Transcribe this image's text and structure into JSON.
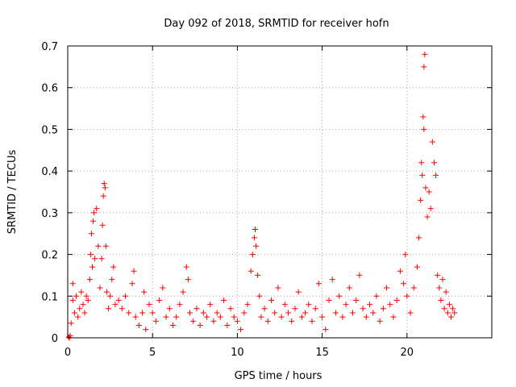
{
  "chart_data": {
    "type": "scatter",
    "title": "Day 092 of 2018, SRMTID for receiver hofn",
    "xlabel": "GPS time / hours",
    "ylabel": "SRMTID / TECUs",
    "xlim": [
      0,
      25
    ],
    "ylim": [
      0,
      0.7
    ],
    "xticks": [
      0,
      5,
      10,
      15,
      20
    ],
    "xtick_labels": [
      "0",
      "5",
      "10",
      "15",
      "20"
    ],
    "yticks": [
      0,
      0.1,
      0.2,
      0.3,
      0.4,
      0.5,
      0.6,
      0.7
    ],
    "ytick_labels": [
      "0",
      "0.1",
      "0.2",
      "0.3",
      "0.4",
      "0.5",
      "0.6",
      "0.7"
    ],
    "grid": true,
    "marker": "+",
    "series": [
      {
        "name": "SRMTID",
        "color": "#ff0000",
        "points": [
          [
            0.05,
            0.002
          ],
          [
            0.1,
            0.0
          ],
          [
            0.15,
            0.005
          ],
          [
            0.2,
            0.035
          ],
          [
            0.3,
            0.13
          ],
          [
            0.3,
            0.09
          ],
          [
            0.4,
            0.06
          ],
          [
            0.5,
            0.1
          ],
          [
            0.6,
            0.05
          ],
          [
            0.7,
            0.07
          ],
          [
            0.8,
            0.11
          ],
          [
            0.9,
            0.08
          ],
          [
            1.0,
            0.06
          ],
          [
            1.1,
            0.1
          ],
          [
            1.2,
            0.09
          ],
          [
            1.3,
            0.14
          ],
          [
            1.35,
            0.2
          ],
          [
            1.4,
            0.25
          ],
          [
            1.45,
            0.17
          ],
          [
            1.5,
            0.28
          ],
          [
            1.55,
            0.3
          ],
          [
            1.6,
            0.19
          ],
          [
            1.7,
            0.31
          ],
          [
            1.8,
            0.22
          ],
          [
            1.9,
            0.12
          ],
          [
            2.0,
            0.19
          ],
          [
            2.05,
            0.27
          ],
          [
            2.1,
            0.34
          ],
          [
            2.15,
            0.37
          ],
          [
            2.2,
            0.36
          ],
          [
            2.25,
            0.22
          ],
          [
            2.3,
            0.11
          ],
          [
            2.4,
            0.07
          ],
          [
            2.5,
            0.1
          ],
          [
            2.6,
            0.14
          ],
          [
            2.7,
            0.17
          ],
          [
            2.8,
            0.08
          ],
          [
            3.0,
            0.09
          ],
          [
            3.2,
            0.07
          ],
          [
            3.4,
            0.1
          ],
          [
            3.6,
            0.06
          ],
          [
            3.8,
            0.13
          ],
          [
            3.9,
            0.16
          ],
          [
            4.0,
            0.05
          ],
          [
            4.2,
            0.03
          ],
          [
            4.4,
            0.06
          ],
          [
            4.5,
            0.11
          ],
          [
            4.6,
            0.02
          ],
          [
            4.8,
            0.08
          ],
          [
            5.0,
            0.06
          ],
          [
            5.2,
            0.04
          ],
          [
            5.4,
            0.09
          ],
          [
            5.6,
            0.12
          ],
          [
            5.8,
            0.05
          ],
          [
            6.0,
            0.07
          ],
          [
            6.2,
            0.03
          ],
          [
            6.4,
            0.05
          ],
          [
            6.6,
            0.08
          ],
          [
            6.8,
            0.11
          ],
          [
            7.0,
            0.17
          ],
          [
            7.1,
            0.14
          ],
          [
            7.2,
            0.06
          ],
          [
            7.4,
            0.04
          ],
          [
            7.6,
            0.07
          ],
          [
            7.8,
            0.03
          ],
          [
            8.0,
            0.06
          ],
          [
            8.2,
            0.05
          ],
          [
            8.4,
            0.08
          ],
          [
            8.6,
            0.04
          ],
          [
            8.8,
            0.06
          ],
          [
            9.0,
            0.05
          ],
          [
            9.2,
            0.09
          ],
          [
            9.4,
            0.03
          ],
          [
            9.6,
            0.07
          ],
          [
            9.8,
            0.05
          ],
          [
            10.0,
            0.04
          ],
          [
            10.2,
            0.02
          ],
          [
            10.4,
            0.06
          ],
          [
            10.6,
            0.08
          ],
          [
            10.8,
            0.16
          ],
          [
            10.9,
            0.2
          ],
          [
            11.0,
            0.24
          ],
          [
            11.05,
            0.26
          ],
          [
            11.1,
            0.22
          ],
          [
            11.2,
            0.15
          ],
          [
            11.3,
            0.1
          ],
          [
            11.4,
            0.05
          ],
          [
            11.6,
            0.07
          ],
          [
            11.8,
            0.04
          ],
          [
            12.0,
            0.09
          ],
          [
            12.2,
            0.06
          ],
          [
            12.4,
            0.12
          ],
          [
            12.6,
            0.05
          ],
          [
            12.8,
            0.08
          ],
          [
            13.0,
            0.06
          ],
          [
            13.2,
            0.04
          ],
          [
            13.4,
            0.07
          ],
          [
            13.6,
            0.11
          ],
          [
            13.8,
            0.05
          ],
          [
            14.0,
            0.06
          ],
          [
            14.2,
            0.08
          ],
          [
            14.4,
            0.04
          ],
          [
            14.6,
            0.07
          ],
          [
            14.8,
            0.13
          ],
          [
            15.0,
            0.05
          ],
          [
            15.2,
            0.02
          ],
          [
            15.4,
            0.09
          ],
          [
            15.6,
            0.14
          ],
          [
            15.8,
            0.06
          ],
          [
            16.0,
            0.1
          ],
          [
            16.2,
            0.05
          ],
          [
            16.4,
            0.08
          ],
          [
            16.6,
            0.12
          ],
          [
            16.8,
            0.06
          ],
          [
            17.0,
            0.09
          ],
          [
            17.2,
            0.15
          ],
          [
            17.4,
            0.07
          ],
          [
            17.6,
            0.05
          ],
          [
            17.8,
            0.08
          ],
          [
            18.0,
            0.06
          ],
          [
            18.2,
            0.1
          ],
          [
            18.4,
            0.04
          ],
          [
            18.6,
            0.07
          ],
          [
            18.8,
            0.12
          ],
          [
            19.0,
            0.08
          ],
          [
            19.2,
            0.05
          ],
          [
            19.4,
            0.09
          ],
          [
            19.6,
            0.16
          ],
          [
            19.8,
            0.13
          ],
          [
            19.9,
            0.2
          ],
          [
            20.0,
            0.1
          ],
          [
            20.2,
            0.06
          ],
          [
            20.4,
            0.12
          ],
          [
            20.6,
            0.17
          ],
          [
            20.7,
            0.24
          ],
          [
            20.8,
            0.33
          ],
          [
            20.85,
            0.42
          ],
          [
            20.9,
            0.39
          ],
          [
            20.95,
            0.53
          ],
          [
            21.0,
            0.5
          ],
          [
            21.0,
            0.65
          ],
          [
            21.05,
            0.68
          ],
          [
            21.1,
            0.36
          ],
          [
            21.2,
            0.29
          ],
          [
            21.3,
            0.35
          ],
          [
            21.4,
            0.31
          ],
          [
            21.5,
            0.47
          ],
          [
            21.6,
            0.42
          ],
          [
            21.7,
            0.39
          ],
          [
            21.8,
            0.15
          ],
          [
            21.9,
            0.12
          ],
          [
            22.0,
            0.09
          ],
          [
            22.1,
            0.14
          ],
          [
            22.2,
            0.07
          ],
          [
            22.3,
            0.11
          ],
          [
            22.4,
            0.06
          ],
          [
            22.5,
            0.08
          ],
          [
            22.6,
            0.05
          ],
          [
            22.7,
            0.07
          ],
          [
            22.8,
            0.06
          ]
        ]
      }
    ]
  }
}
